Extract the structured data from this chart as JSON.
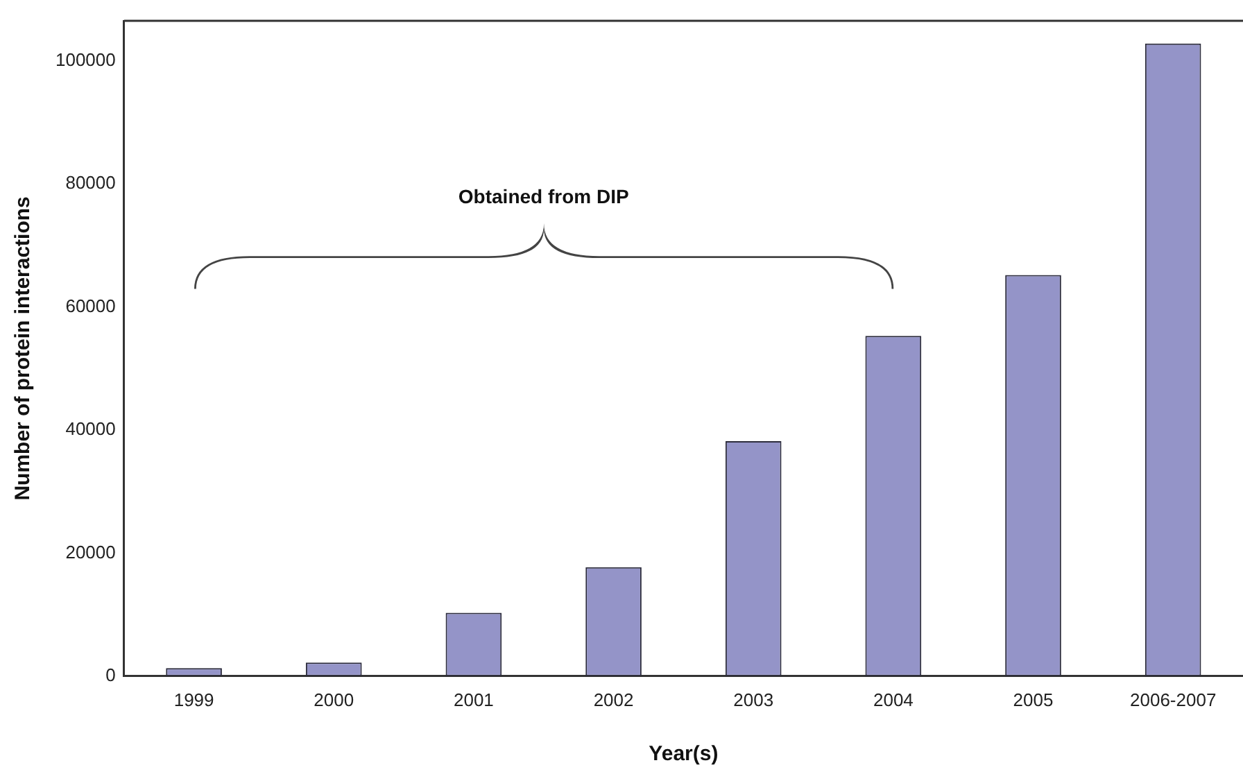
{
  "chart_data": {
    "type": "bar",
    "xlabel": "Year(s)",
    "ylabel": "Number of protein interactions",
    "categories": [
      "1999",
      "2000",
      "2001",
      "2002",
      "2003",
      "2004",
      "2005",
      "2006-2007"
    ],
    "values": [
      1300,
      2200,
      10300,
      17700,
      38200,
      55300,
      65200,
      102800
    ],
    "color": "#9494c8",
    "ylim": [
      0,
      106500
    ],
    "yticks": [
      0,
      20000,
      40000,
      60000,
      80000,
      100000
    ],
    "grid": false,
    "legend": false,
    "annotations": [
      "Obtained from DIP"
    ]
  }
}
